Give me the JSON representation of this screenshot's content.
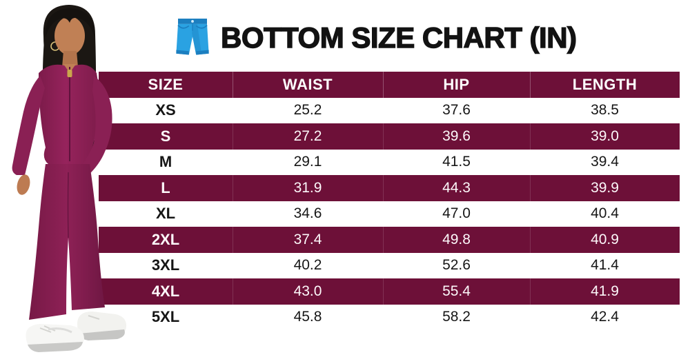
{
  "header": {
    "title": "BOTTOM SIZE CHART (IN)",
    "icon": "jeans-icon"
  },
  "colors": {
    "table_accent": "#6D1038",
    "row_alt": "#FFFFFF",
    "header_text": "#FFFFFF",
    "body_text": "#161616",
    "jeans_blue": "#2AA2E2",
    "jeans_blue_dark": "#1C7FC0",
    "model_outfit": "#8E2156"
  },
  "chart_data": {
    "type": "table",
    "title": "BOTTOM SIZE CHART (IN)",
    "unit": "in",
    "columns": [
      "SIZE",
      "WAIST",
      "HIP",
      "LENGTH"
    ],
    "rows": [
      [
        "XS",
        "25.2",
        "37.6",
        "38.5"
      ],
      [
        "S",
        "27.2",
        "39.6",
        "39.0"
      ],
      [
        "M",
        "29.1",
        "41.5",
        "39.4"
      ],
      [
        "L",
        "31.9",
        "44.3",
        "39.9"
      ],
      [
        "XL",
        "34.6",
        "47.0",
        "40.4"
      ],
      [
        "2XL",
        "37.4",
        "49.8",
        "40.9"
      ],
      [
        "3XL",
        "40.2",
        "52.6",
        "41.4"
      ],
      [
        "4XL",
        "43.0",
        "55.4",
        "41.9"
      ],
      [
        "5XL",
        "45.8",
        "58.2",
        "42.4"
      ]
    ]
  },
  "model": {
    "alt": "Model wearing burgundy ribbed zip-front top, matching flared pants and white sneakers"
  }
}
